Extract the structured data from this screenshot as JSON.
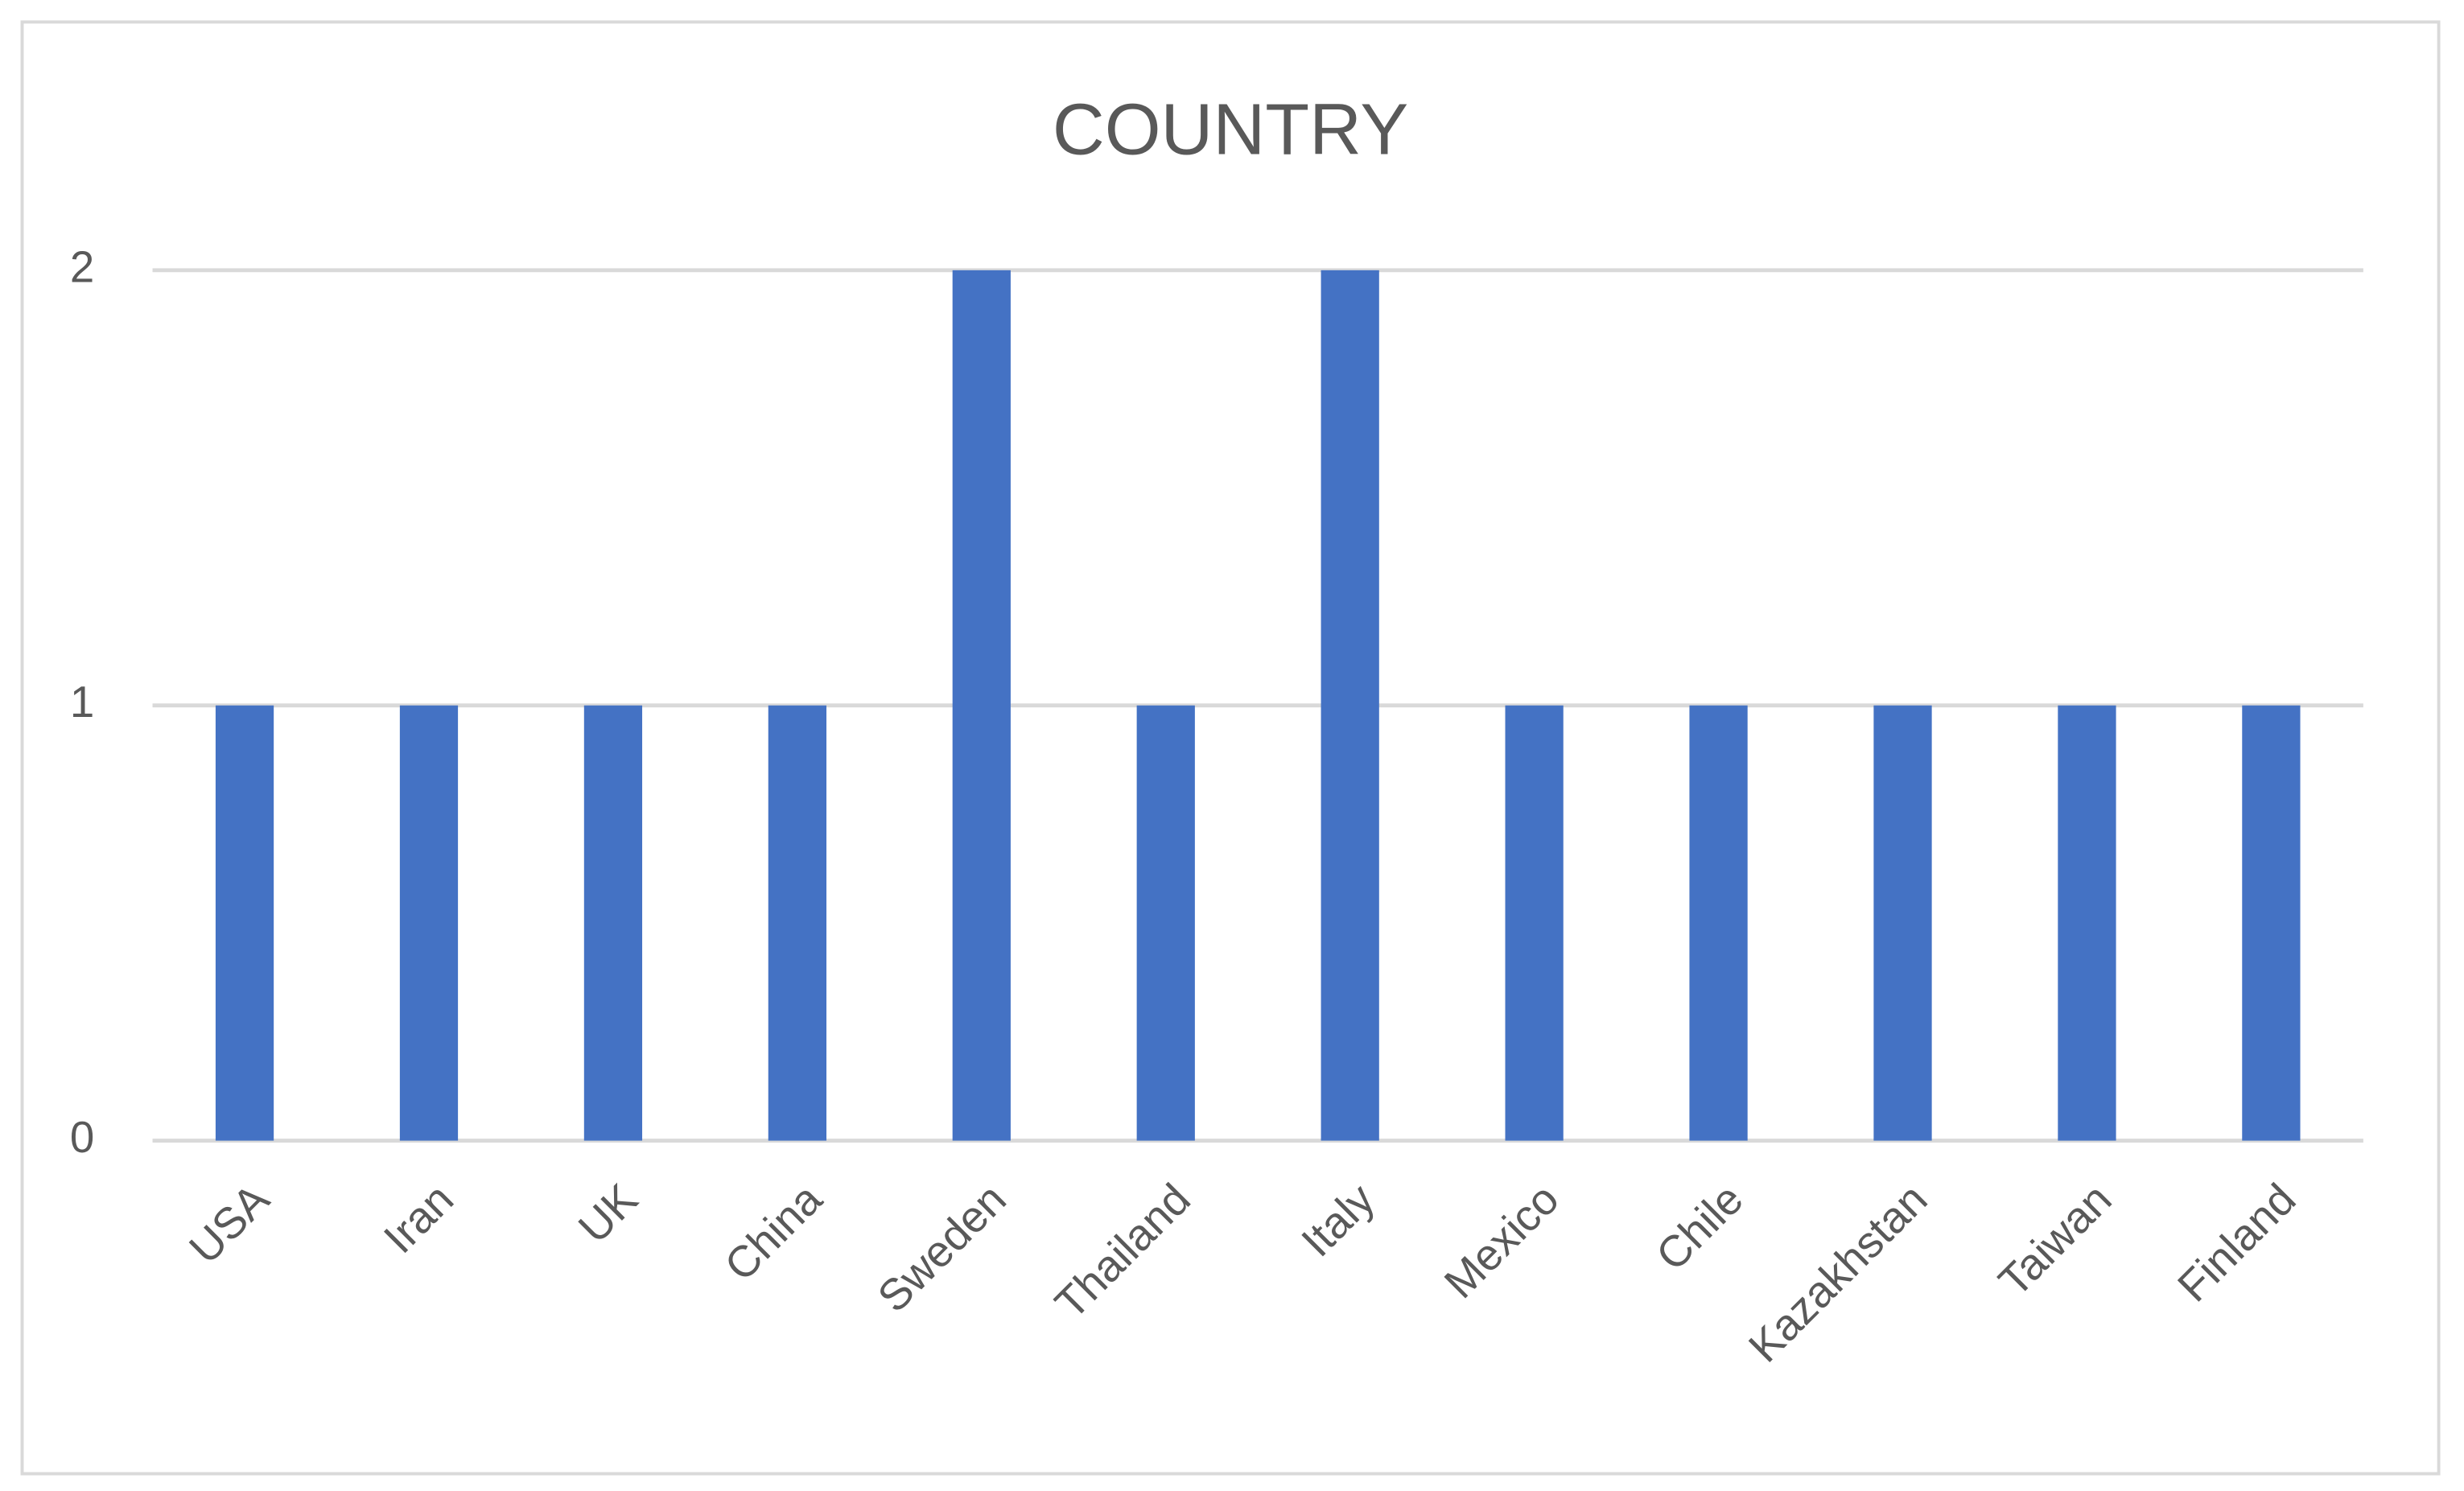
{
  "chart_data": {
    "type": "bar",
    "title": "COUNTRY",
    "categories": [
      "USA",
      "Iran",
      "UK",
      "China",
      "Sweden",
      "Thailand",
      "Italy",
      "Mexico",
      "Chile",
      "Kazakhstan",
      "Taiwan",
      "Finland"
    ],
    "values": [
      1,
      1,
      1,
      1,
      2,
      1,
      2,
      1,
      1,
      1,
      1,
      1
    ],
    "color": "#4472c4",
    "ylim": [
      0,
      2
    ],
    "yticks": [
      0,
      1,
      2
    ],
    "grid": true
  }
}
